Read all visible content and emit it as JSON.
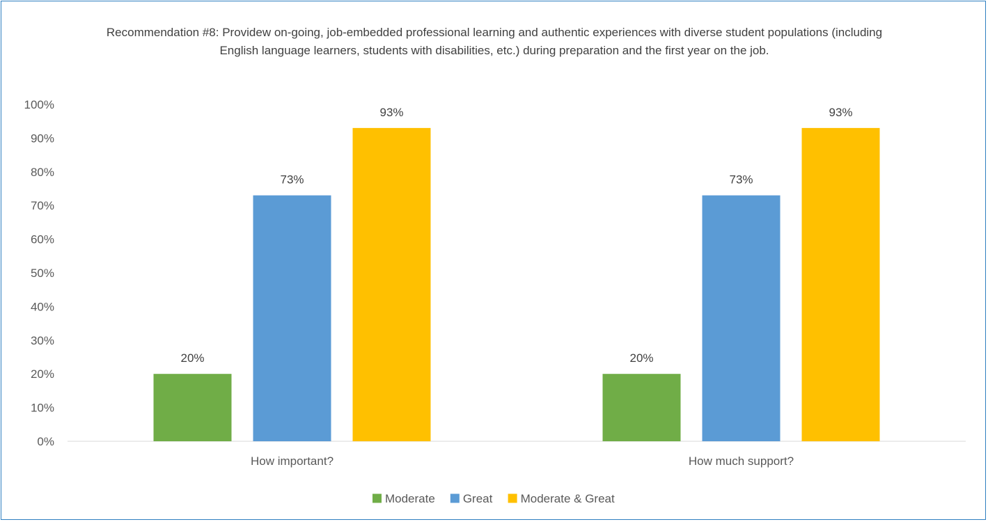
{
  "chart_data": {
    "type": "bar",
    "title": "Recommendation #8:  Providew on-going, job-embedded professional learning and authentic experiences with diverse student populations (including English language learners, students with disabilities, etc.) during preparation and the first year on the job.",
    "categories": [
      "How important?",
      "How much support?"
    ],
    "series": [
      {
        "name": "Moderate",
        "values": [
          20,
          20
        ],
        "labels": [
          "20%",
          "20%"
        ],
        "color": "#70ad47"
      },
      {
        "name": "Great",
        "values": [
          73,
          73
        ],
        "labels": [
          "73%",
          "73%"
        ],
        "color": "#5b9bd5"
      },
      {
        "name": "Moderate & Great",
        "values": [
          93,
          93
        ],
        "labels": [
          "93%",
          "93%"
        ],
        "color": "#ffc000"
      }
    ],
    "ylim": [
      0,
      100
    ],
    "yticks": [
      0,
      10,
      20,
      30,
      40,
      50,
      60,
      70,
      80,
      90,
      100
    ],
    "ytick_labels": [
      "0%",
      "10%",
      "20%",
      "30%",
      "40%",
      "50%",
      "60%",
      "70%",
      "80%",
      "90%",
      "100%"
    ],
    "grid": false,
    "legend_position": "bottom"
  },
  "colors": {
    "border": "#2f7fc1",
    "axis_line": "#d9d9d9"
  }
}
